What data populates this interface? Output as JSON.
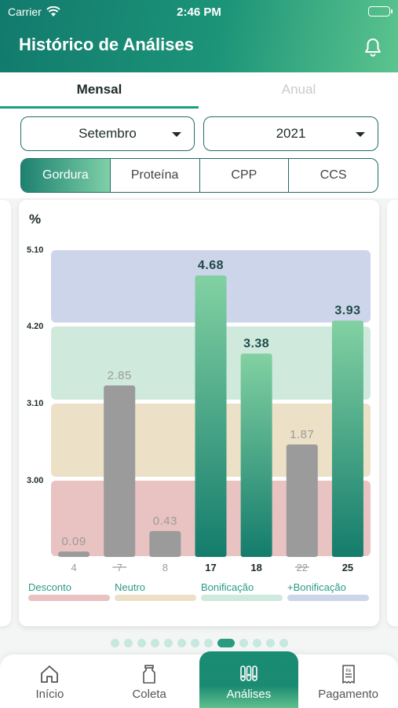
{
  "status": {
    "carrier": "Carrier",
    "time": "2:46 PM"
  },
  "header": {
    "title": "Histórico de Análises",
    "bell_icon": "bell-icon"
  },
  "tabs": {
    "mensal": "Mensal",
    "anual": "Anual"
  },
  "filters": {
    "month": "Setembro",
    "year": "2021"
  },
  "segments": [
    "Gordura",
    "Proteína",
    "CPP",
    "CCS"
  ],
  "chart_data": {
    "type": "bar",
    "unit_label": "%",
    "y_ticks": [
      "5.10",
      "4.20",
      "3.10",
      "3.00"
    ],
    "categories": [
      "4",
      "7",
      "8",
      "17",
      "18",
      "22",
      "25"
    ],
    "values": [
      0.09,
      2.85,
      0.43,
      4.68,
      3.38,
      1.87,
      3.93
    ],
    "value_labels": [
      "0.09",
      "2.85",
      "0.43",
      "4.68",
      "3.38",
      "1.87",
      "3.93"
    ],
    "strikethrough": [
      false,
      true,
      false,
      false,
      false,
      true,
      false
    ],
    "highlighted": [
      false,
      false,
      false,
      true,
      true,
      false,
      true
    ],
    "bands": [
      {
        "name": "Desconto",
        "color": "#e8c3c1"
      },
      {
        "name": "Neutro",
        "color": "#ece0c6"
      },
      {
        "name": "Bonificação",
        "color": "#cfe9dd"
      },
      {
        "name": "+Bonificação",
        "color": "#cdd5ea"
      }
    ],
    "colors": {
      "highlight_top": "#82d1a2",
      "highlight_bottom": "#147c6c",
      "muted": "#9b9b9b",
      "label_dark": "#1d4a47",
      "label_muted": "#9b9b9b",
      "legend_text": "#2a9a88"
    }
  },
  "pager": {
    "count": 13,
    "active": 8
  },
  "nav": [
    {
      "label": "Início",
      "icon": "home-icon"
    },
    {
      "label": "Coleta",
      "icon": "milk-can-icon"
    },
    {
      "label": "Análises",
      "icon": "test-tubes-icon"
    },
    {
      "label": "Pagamento",
      "icon": "receipt-icon"
    }
  ]
}
